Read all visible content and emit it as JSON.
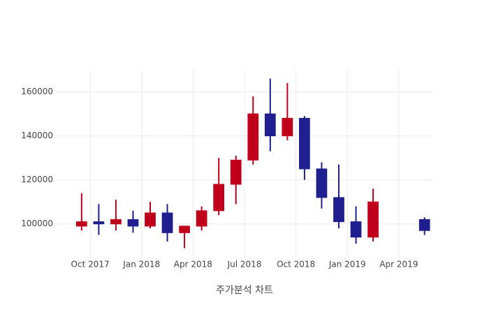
{
  "chart_data": {
    "type": "candlestick",
    "x_label": "주가분석 차트",
    "x": [
      "2017-09",
      "2017-10",
      "2017-11",
      "2017-12",
      "2018-01",
      "2018-02",
      "2018-03",
      "2018-04",
      "2018-05",
      "2018-06",
      "2018-07",
      "2018-08",
      "2018-09",
      "2018-10",
      "2018-11",
      "2018-12",
      "2019-01",
      "2019-02",
      "2019-05"
    ],
    "open": [
      99000,
      101000,
      100000,
      102000,
      99000,
      105000,
      96000,
      99000,
      106000,
      118000,
      129000,
      150000,
      140000,
      148000,
      125000,
      112000,
      101000,
      94000,
      102000
    ],
    "high": [
      114000,
      109000,
      111000,
      106000,
      110000,
      109000,
      99000,
      108000,
      130000,
      131000,
      158000,
      166000,
      164000,
      149000,
      128000,
      127000,
      108000,
      116000,
      103000
    ],
    "low": [
      97000,
      95000,
      97000,
      96000,
      98000,
      92000,
      89000,
      97000,
      104000,
      109000,
      127000,
      133000,
      138000,
      120000,
      107000,
      98000,
      91000,
      92000,
      95000
    ],
    "close": [
      101000,
      100000,
      102000,
      99000,
      105000,
      96000,
      99000,
      106000,
      118000,
      129000,
      150000,
      140000,
      148000,
      125000,
      112000,
      101000,
      94000,
      110000,
      97000
    ],
    "increasing_color": "#c0001a",
    "decreasing_color": "#1f1f8f",
    "xlim": [
      "2017-08",
      "2019-06"
    ],
    "xticks": [
      {
        "value": "2017-10",
        "label": "Oct 2017"
      },
      {
        "value": "2018-01",
        "label": "Jan 2018"
      },
      {
        "value": "2018-04",
        "label": "Apr 2018"
      },
      {
        "value": "2018-07",
        "label": "Jul 2018"
      },
      {
        "value": "2018-10",
        "label": "Oct 2018"
      },
      {
        "value": "2019-01",
        "label": "Jan 2019"
      },
      {
        "value": "2019-04",
        "label": "Apr 2019"
      }
    ],
    "ylim": [
      85000,
      170000
    ],
    "yticks": [
      100000,
      120000,
      140000,
      160000
    ],
    "grid": true
  }
}
